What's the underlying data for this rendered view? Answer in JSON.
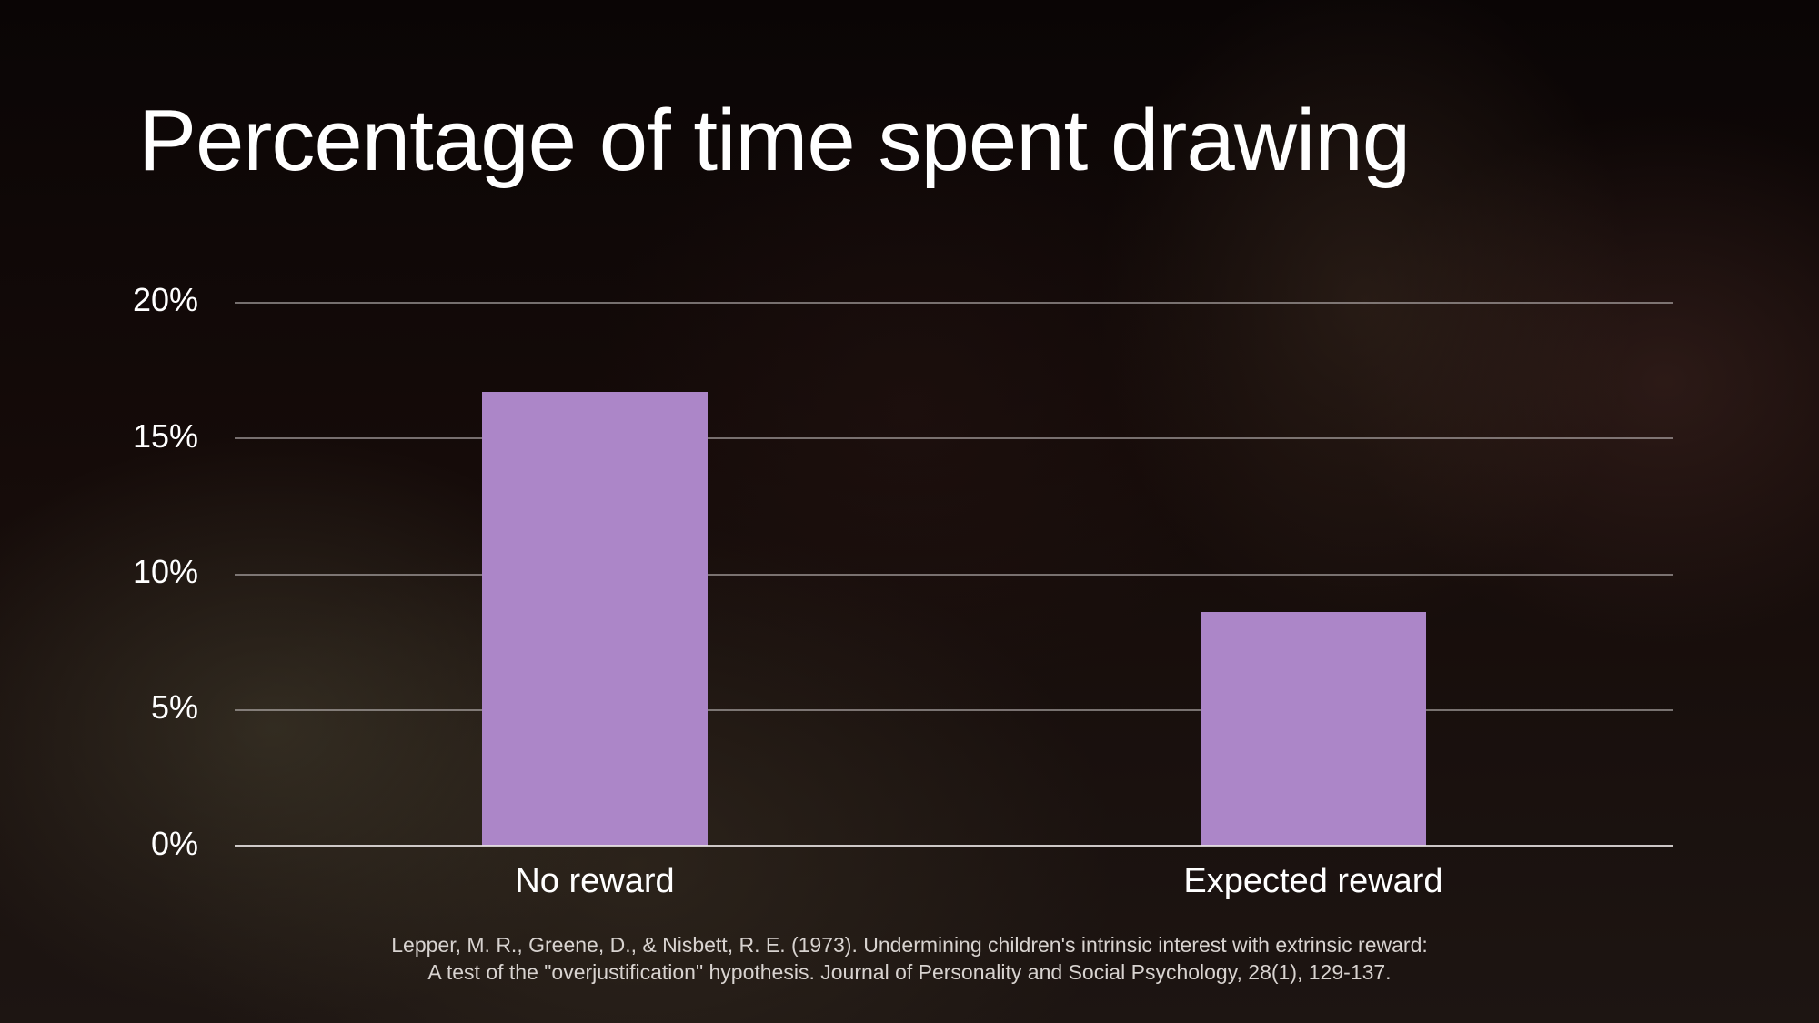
{
  "slide": {
    "title": "Percentage of time spent drawing",
    "citation": {
      "line1": "Lepper, M. R., Greene, D., & Nisbett, R. E. (1973). Undermining children's intrinsic interest with extrinsic reward:",
      "line2": "A test of the \"overjustification\" hypothesis. Journal of Personality and Social Psychology, 28(1), 129-137."
    },
    "colors": {
      "bar": "#ac86c8",
      "text": "#ffffff",
      "background": "#0d0706"
    }
  },
  "chart_data": {
    "type": "bar",
    "title": "Percentage of time spent drawing",
    "xlabel": "",
    "ylabel": "",
    "categories": [
      "No reward",
      "Expected reward"
    ],
    "values": [
      16.7,
      8.6
    ],
    "unit": "%",
    "ylim": [
      0,
      20
    ],
    "yticks": [
      "0%",
      "5%",
      "10%",
      "15%",
      "20%"
    ],
    "grid": true,
    "legend": null,
    "annotations": []
  }
}
